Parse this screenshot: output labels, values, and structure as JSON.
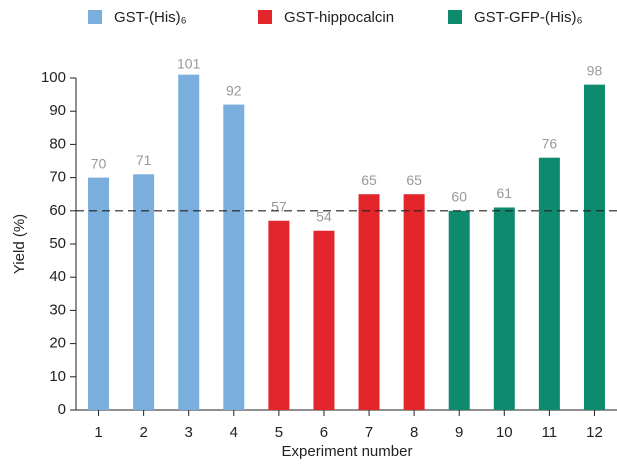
{
  "chart_data": {
    "type": "bar",
    "x_label": "Experiment number",
    "y_label": "Yield (%)",
    "categories": [
      "1",
      "2",
      "3",
      "4",
      "5",
      "6",
      "7",
      "8",
      "9",
      "10",
      "11",
      "12"
    ],
    "series": [
      {
        "name": "GST-(His)₆",
        "color": "#7aaedc",
        "values": [
          70,
          71,
          101,
          92,
          null,
          null,
          null,
          null,
          null,
          null,
          null,
          null
        ]
      },
      {
        "name": "GST-hippocalcin",
        "color": "#e3262b",
        "values": [
          null,
          null,
          null,
          null,
          57,
          54,
          65,
          65,
          null,
          null,
          null,
          null
        ]
      },
      {
        "name": "GST-GFP-(His)₆",
        "color": "#0e8a6e",
        "values": [
          null,
          null,
          null,
          null,
          null,
          null,
          null,
          null,
          60,
          61,
          76,
          98
        ]
      }
    ],
    "reference_line": 60,
    "ylim": [
      0,
      100
    ],
    "yticks": [
      0,
      10,
      20,
      30,
      40,
      50,
      60,
      70,
      80,
      90,
      100
    ],
    "grid": false,
    "legend": "top"
  }
}
